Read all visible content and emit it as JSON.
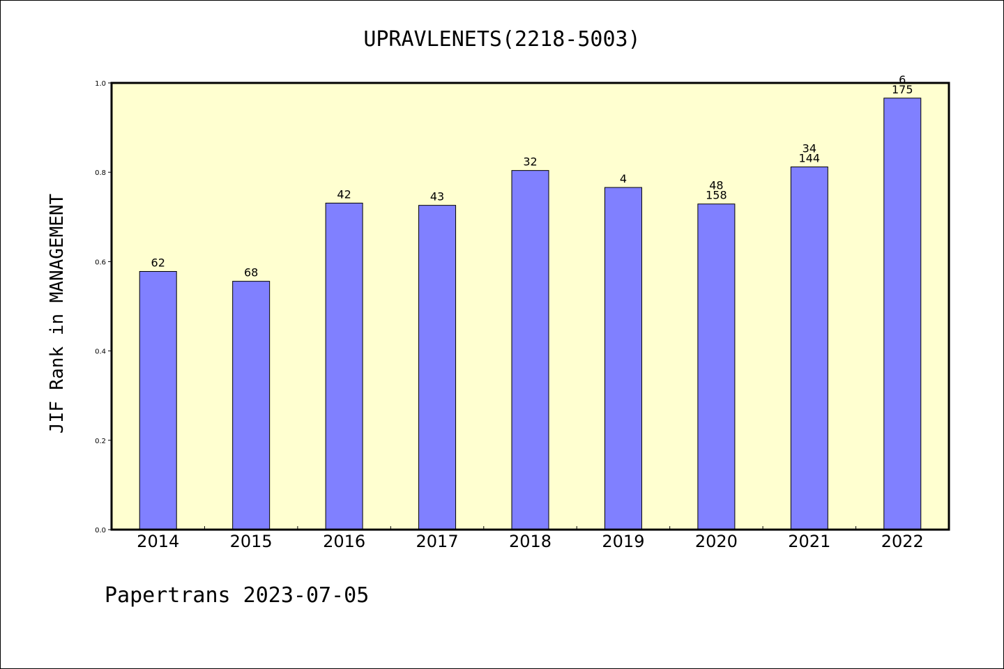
{
  "chart_data": {
    "type": "bar",
    "title": "UPRAVLENETS(2218-5003)",
    "xlabel": "",
    "ylabel": "JIF Rank in MANAGEMENT",
    "categories": [
      "2014",
      "2015",
      "2016",
      "2017",
      "2018",
      "2019",
      "2020",
      "2021",
      "2022"
    ],
    "values": [
      0.578,
      0.556,
      0.731,
      0.726,
      0.804,
      0.766,
      0.729,
      0.812,
      0.966
    ],
    "bar_labels": [
      [
        "62"
      ],
      [
        "68"
      ],
      [
        "42"
      ],
      [
        "43"
      ],
      [
        "32"
      ],
      [
        "4"
      ],
      [
        "48",
        "158"
      ],
      [
        "34",
        "144"
      ],
      [
        "6",
        "175"
      ]
    ],
    "ylim": [
      0,
      1.0
    ],
    "yticks": [
      "0.0",
      "0.2",
      "0.4",
      "0.6",
      "0.8",
      "1.0"
    ],
    "grid": false,
    "colors": {
      "bar": "#8080ff",
      "plot_background": "#ffffd0",
      "axes": "#000000"
    }
  },
  "footer": "Papertrans 2023-07-05"
}
